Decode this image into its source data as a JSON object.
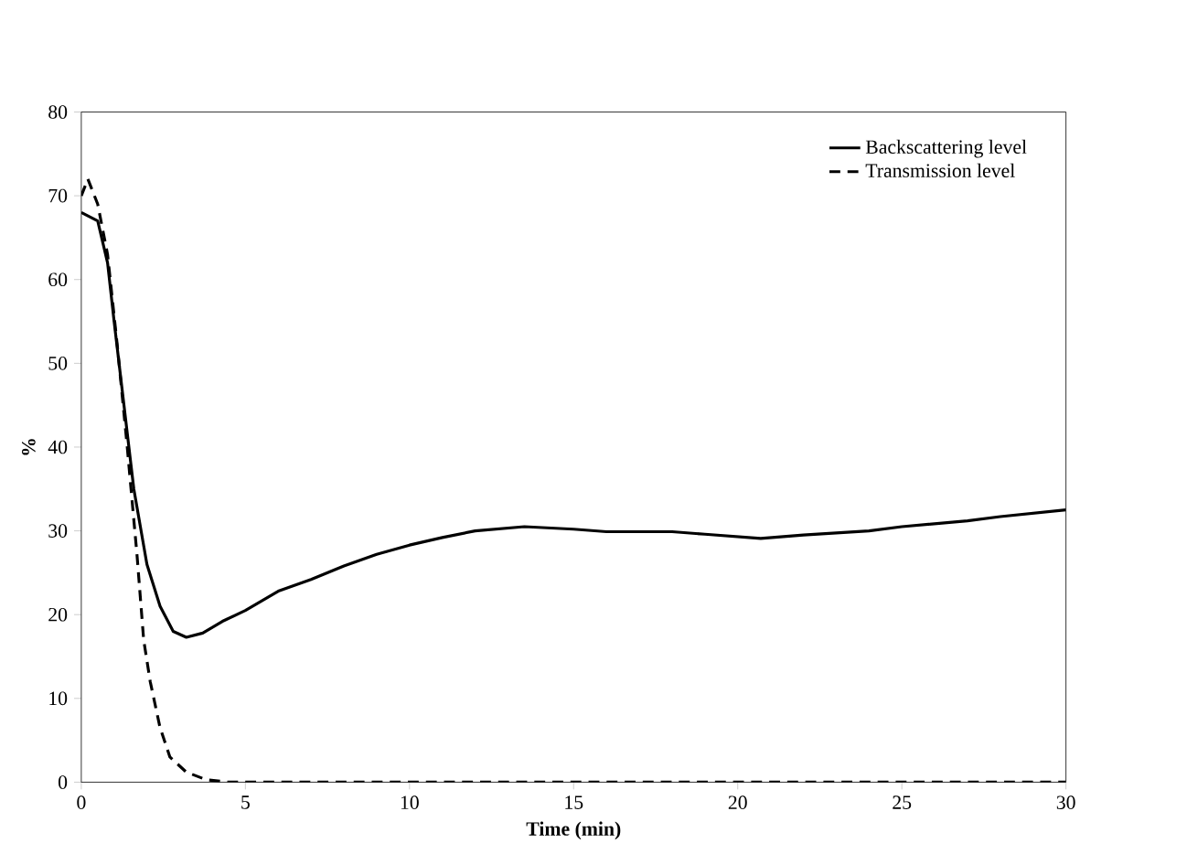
{
  "chart_data": {
    "type": "line",
    "xlabel": "Time (min)",
    "ylabel": "%",
    "xlim": [
      0,
      30
    ],
    "ylim": [
      0,
      80
    ],
    "xticks": [
      0,
      5,
      10,
      15,
      20,
      25,
      30
    ],
    "yticks": [
      0,
      10,
      20,
      30,
      40,
      50,
      60,
      70,
      80
    ],
    "grid": false,
    "legend": "top right",
    "marker": "none",
    "series": [
      {
        "name": "Backscattering level",
        "color": "#000000",
        "line_style": "solid",
        "x": [
          0,
          0.5,
          0.8,
          1.0,
          1.3,
          1.6,
          2.0,
          2.4,
          2.8,
          3.2,
          3.7,
          4.3,
          5,
          6,
          7,
          8,
          9,
          10,
          11,
          12,
          13.5,
          15,
          16,
          18,
          19,
          20.7,
          22,
          24,
          25,
          27,
          28,
          30
        ],
        "values": [
          68,
          67,
          62,
          55,
          45,
          35,
          26,
          21,
          18,
          17.3,
          17.8,
          19.2,
          20.5,
          22.8,
          24.2,
          25.8,
          27.2,
          28.3,
          29.2,
          30,
          30.5,
          30.2,
          29.9,
          29.9,
          29.6,
          29.1,
          29.5,
          30,
          30.5,
          31.2,
          31.7,
          32.5
        ]
      },
      {
        "name": "Transmission level",
        "color": "#000000",
        "line_style": "dashed",
        "x": [
          0,
          0.2,
          0.5,
          0.8,
          1.1,
          1.4,
          1.7,
          1.9,
          2.1,
          2.4,
          2.7,
          3.2,
          3.8,
          4.5,
          6,
          10,
          20,
          30
        ],
        "values": [
          70,
          72,
          69,
          63,
          52,
          40,
          27,
          17,
          12,
          6.5,
          3,
          1.2,
          0.3,
          0,
          0,
          0,
          0,
          0
        ]
      }
    ]
  }
}
